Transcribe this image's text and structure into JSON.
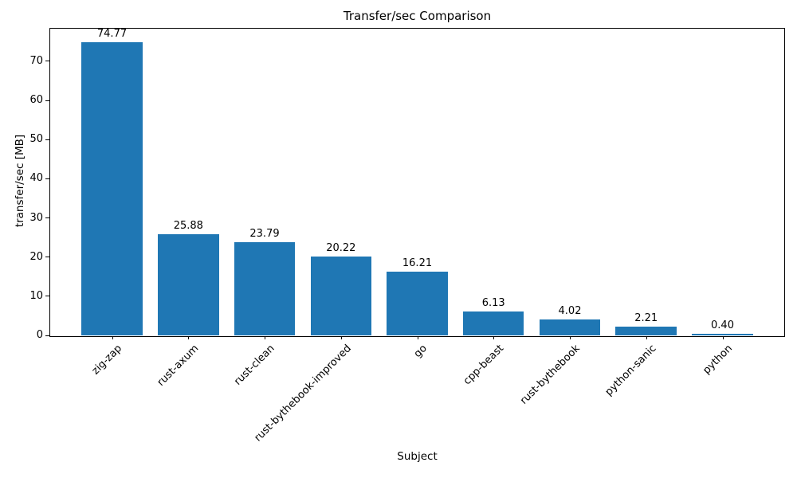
{
  "chart_data": {
    "type": "bar",
    "title": "Transfer/sec Comparison",
    "xlabel": "Subject",
    "ylabel": "transfer/sec [MB]",
    "categories": [
      "zig-zap",
      "rust-axum",
      "rust-clean",
      "rust-bythebook-improved",
      "go",
      "cpp-beast",
      "rust-bythebook",
      "python-sanic",
      "python"
    ],
    "values": [
      74.77,
      25.88,
      23.79,
      20.22,
      16.21,
      6.13,
      4.02,
      2.21,
      0.4
    ],
    "value_labels": [
      "74.77",
      "25.88",
      "23.79",
      "20.22",
      "16.21",
      "6.13",
      "4.02",
      "2.21",
      "0.40"
    ],
    "yticks": [
      0,
      10,
      20,
      30,
      40,
      50,
      60,
      70
    ],
    "ylim": [
      0,
      78.5
    ],
    "bar_color": "#1f77b4",
    "text_color": "#000000",
    "grid": false,
    "legend": null,
    "x_tick_rotation": 45
  }
}
